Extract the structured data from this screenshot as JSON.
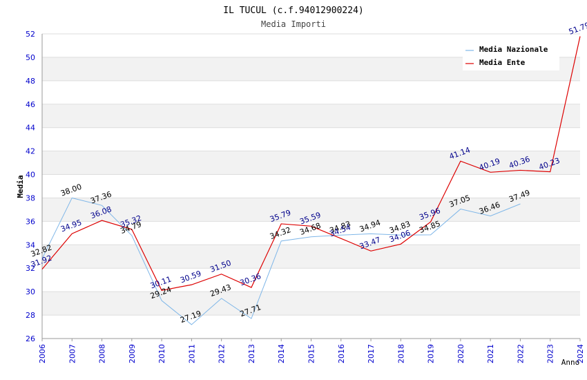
{
  "chart_data": {
    "type": "line",
    "title": "IL TUCUL (c.f.94012900224)",
    "subtitle": "Media Importi",
    "xlabel": "Anno",
    "ylabel": "Media",
    "ylim": [
      26,
      52
    ],
    "yticks": [
      26,
      28,
      30,
      32,
      34,
      36,
      38,
      40,
      42,
      44,
      46,
      48,
      50,
      52
    ],
    "x": [
      2006,
      2007,
      2008,
      2009,
      2010,
      2011,
      2012,
      2013,
      2014,
      2015,
      2016,
      2017,
      2018,
      2019,
      2020,
      2021,
      2022,
      2023,
      2024
    ],
    "legend_position": "top-right",
    "grid": true,
    "series": [
      {
        "name": "Media Nazionale",
        "color": "#7eb6e8",
        "label_color": "#000000",
        "values": [
          32.82,
          38.0,
          37.36,
          34.79,
          29.24,
          27.19,
          29.43,
          27.71,
          34.32,
          34.68,
          34.83,
          34.94,
          34.83,
          34.85,
          37.05,
          36.46,
          37.49,
          null,
          null
        ],
        "labels": [
          "32.82",
          "38.00",
          "37.36",
          "34.79",
          "29.24",
          "27.19",
          "29.43",
          "27.71",
          "34.32",
          "34.68",
          "34.83",
          "34.94",
          "34.83",
          "34.85",
          "37.05",
          "36.46",
          "37.49",
          null,
          null
        ]
      },
      {
        "name": "Media Ente",
        "color": "#dd0000",
        "label_color": "#00008b",
        "values": [
          31.92,
          34.95,
          36.08,
          35.32,
          30.11,
          30.59,
          31.5,
          30.36,
          35.79,
          35.59,
          34.54,
          33.47,
          34.06,
          35.96,
          41.14,
          40.19,
          40.36,
          40.23,
          51.79
        ],
        "labels": [
          "31.92",
          "34.95",
          "36.08",
          "35.32",
          "30.11",
          "30.59",
          "31.50",
          "30.36",
          "35.79",
          "35.59",
          "34.54",
          "33.47",
          "34.06",
          "35.96",
          "41.14",
          "40.19",
          "40.36",
          "40.23",
          "51.79"
        ]
      }
    ]
  }
}
